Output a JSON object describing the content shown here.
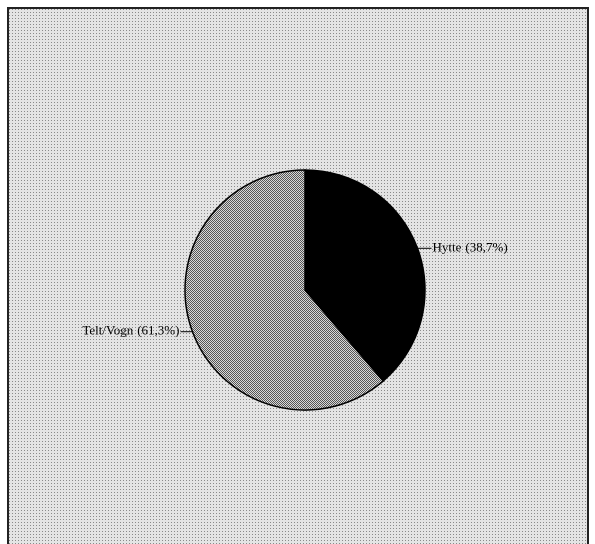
{
  "chart_data": {
    "type": "pie",
    "categories": [
      "Hytte",
      "Telt/Vogn"
    ],
    "values": [
      38.7,
      61.3
    ],
    "value_labels": [
      "(38,7%)",
      "(61,3%)"
    ],
    "colors": [
      "#000000",
      "#9c9c9c"
    ]
  }
}
